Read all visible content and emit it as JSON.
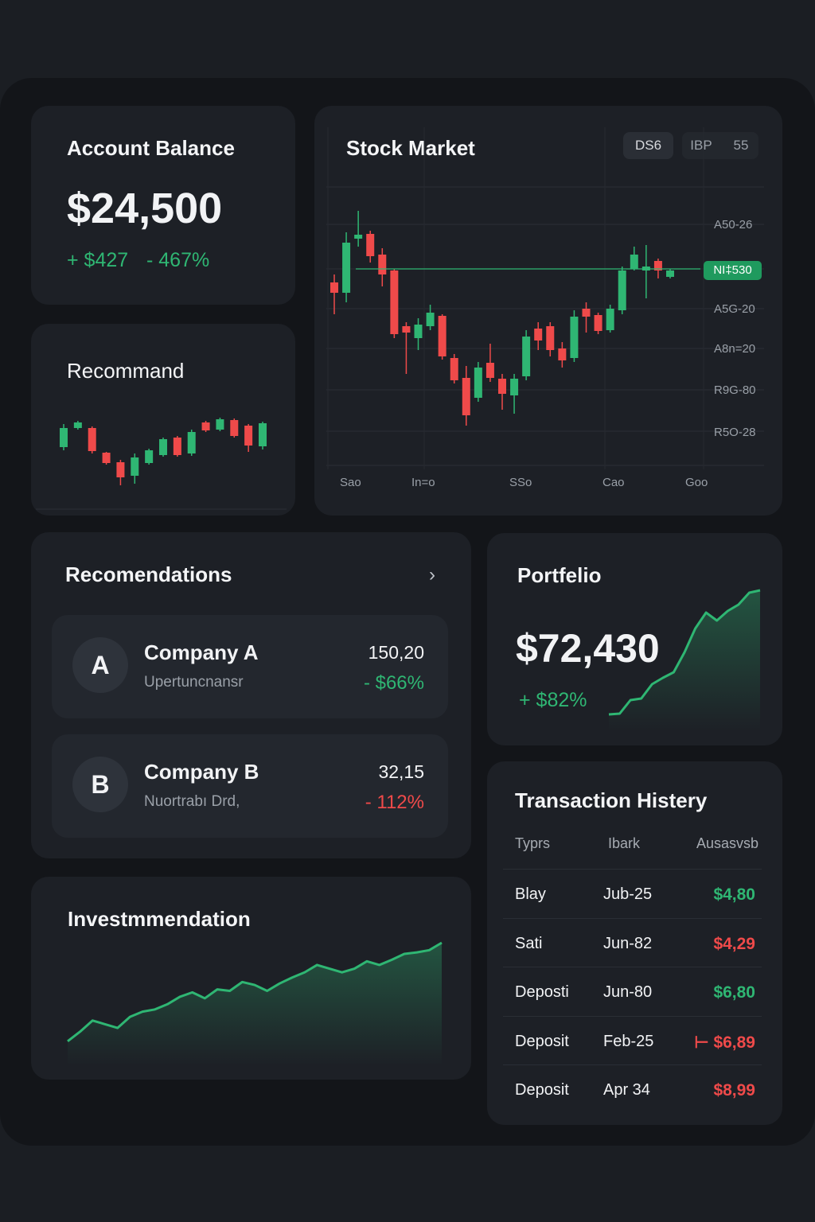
{
  "account": {
    "title": "Account Balance",
    "balance": "$24,500",
    "change": "+ $427",
    "percent": "- 467%"
  },
  "recommend": {
    "title": "Recommand"
  },
  "stock": {
    "title": "Stock Market",
    "pills": [
      "DS6",
      "IBP",
      "55"
    ],
    "y_labels": [
      "A50-26",
      "A5G-20",
      "A8n=20",
      "R9G-80",
      "R5O-28"
    ],
    "price_tag": "NI‡530",
    "x_labels": [
      "Sao",
      "In=o",
      "SSo",
      "Cao",
      "Goo"
    ]
  },
  "recommendations": {
    "title": "Recomendations",
    "more_icon": "chevron-right-icon",
    "items": [
      {
        "avatar": "A",
        "name": "Company A",
        "subtitle": "Upertuncnansr",
        "value": "150,20",
        "change": "- $66%",
        "change_color": "#2fb673"
      },
      {
        "avatar": "B",
        "name": "Company B",
        "subtitle": "Nuortrabı Drd,",
        "value": "32,15",
        "change": "- 112%",
        "change_color": "#ef4a4a"
      }
    ]
  },
  "portfolio": {
    "title": "Portfelio",
    "value": "$72,430",
    "change": "+ $82%"
  },
  "investment": {
    "title": "Investmmendation"
  },
  "transactions": {
    "title": "Transaction Histery",
    "headers": [
      "Typrs",
      "Ibark",
      "Ausasvsb"
    ],
    "rows": [
      {
        "type": "Blay",
        "date": "Jub-25",
        "amount": "$4,80",
        "color": "#2fb673"
      },
      {
        "type": "Sati",
        "date": "Jun-82",
        "amount": "$4,29",
        "color": "#ef4a4a"
      },
      {
        "type": "Deposti",
        "date": "Jun-80",
        "amount": "$6,80",
        "color": "#2fb673"
      },
      {
        "type": "Deposit",
        "date": "Feb-25",
        "amount": "⊢ $6,89",
        "color": "#ef4a4a"
      },
      {
        "type": "Deposit",
        "date": "Apr 34",
        "amount": "$8,99",
        "color": "#ef4a4a"
      }
    ]
  },
  "colors": {
    "up": "#2fb673",
    "down": "#ef4a4a",
    "card": "#1d2026",
    "background": "#131519"
  },
  "chart_data": [
    {
      "type": "candlestick",
      "name": "stock-market",
      "ylim": [
        15,
        365
      ],
      "reference_line": 262,
      "candles": [
        [
          245,
          232,
          255,
          205
        ],
        [
          232,
          295,
          308,
          220
        ],
        [
          300,
          305,
          335,
          290
        ],
        [
          306,
          278,
          310,
          270
        ],
        [
          280,
          255,
          288,
          240
        ],
        [
          260,
          180,
          262,
          175
        ],
        [
          190,
          182,
          195,
          130
        ],
        [
          175,
          192,
          200,
          160
        ],
        [
          190,
          207,
          217,
          185
        ],
        [
          203,
          152,
          205,
          148
        ],
        [
          150,
          122,
          155,
          118
        ],
        [
          125,
          78,
          140,
          65
        ],
        [
          100,
          138,
          145,
          95
        ],
        [
          144,
          125,
          168,
          120
        ],
        [
          124,
          105,
          130,
          85
        ],
        [
          103,
          124,
          130,
          80
        ],
        [
          127,
          177,
          185,
          122
        ],
        [
          187,
          172,
          195,
          160
        ],
        [
          190,
          160,
          195,
          152
        ],
        [
          162,
          147,
          170,
          138
        ],
        [
          150,
          202,
          210,
          145
        ],
        [
          212,
          202,
          220,
          182
        ],
        [
          204,
          184,
          207,
          180
        ],
        [
          185,
          212,
          217,
          182
        ],
        [
          210,
          260,
          265,
          205
        ],
        [
          262,
          280,
          290,
          260
        ],
        [
          260,
          265,
          292,
          225
        ],
        [
          272,
          260,
          275,
          250
        ],
        [
          252,
          260,
          262,
          250
        ]
      ]
    },
    {
      "type": "candlestick",
      "name": "recommend",
      "ylim": [
        0,
        110
      ],
      "candles": [
        [
          58,
          82,
          87,
          54
        ],
        [
          82,
          89,
          91,
          80
        ],
        [
          82,
          53,
          84,
          50
        ],
        [
          51,
          38,
          52,
          36
        ],
        [
          39,
          20,
          42,
          10
        ],
        [
          22,
          45,
          50,
          12
        ],
        [
          38,
          54,
          56,
          36
        ],
        [
          48,
          68,
          70,
          46
        ],
        [
          70,
          48,
          72,
          46
        ],
        [
          50,
          77,
          80,
          47
        ],
        [
          89,
          79,
          91,
          77
        ],
        [
          80,
          93,
          95,
          78
        ],
        [
          92,
          72,
          94,
          70
        ],
        [
          85,
          60,
          87,
          52
        ],
        [
          59,
          88,
          90,
          55
        ]
      ]
    },
    {
      "type": "area",
      "name": "portfolio",
      "values": [
        2,
        3,
        20,
        22,
        40,
        48,
        55,
        80,
        110,
        130,
        120,
        132,
        140,
        155,
        158
      ]
    },
    {
      "type": "area",
      "name": "investment",
      "values": [
        12,
        25,
        40,
        35,
        30,
        45,
        52,
        55,
        62,
        72,
        78,
        70,
        82,
        80,
        92,
        88,
        80,
        90,
        98,
        105,
        115,
        110,
        105,
        110,
        120,
        115,
        122,
        130,
        132,
        135,
        145
      ]
    }
  ]
}
